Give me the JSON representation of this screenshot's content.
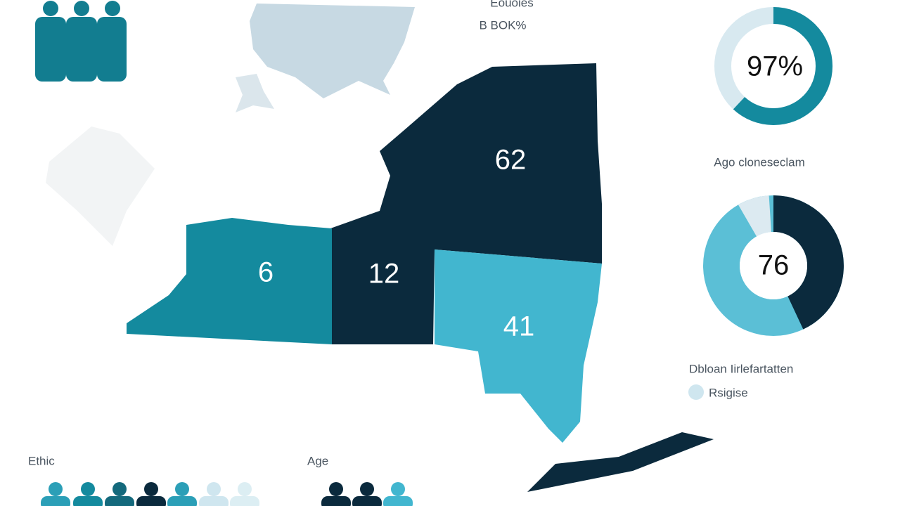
{
  "header": {
    "title": "Eouoies",
    "subtitle": "B BOK%"
  },
  "map": {
    "regions": [
      {
        "label": "62"
      },
      {
        "label": "6"
      },
      {
        "label": "12"
      },
      {
        "label": "41"
      }
    ]
  },
  "donut_top": {
    "label": "97%"
  },
  "donut_bottom": {
    "title": "Ago cloneseclam",
    "label": "76"
  },
  "legend": {
    "title": "Dbloan Iirlefartatten",
    "item": "Rsigise"
  },
  "footer": {
    "ethnic": "Ethic",
    "age": "Age"
  }
}
